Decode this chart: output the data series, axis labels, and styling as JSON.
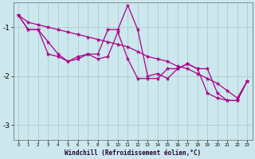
{
  "xlabel": "Windchill (Refroidissement éolien,°C)",
  "bg_color": "#cce8ee",
  "line_color": "#aa0088",
  "grid_color": "#aacccc",
  "ylim": [
    -3.3,
    -0.5
  ],
  "xlim": [
    -0.5,
    23.5
  ],
  "yticks": [
    -3,
    -2,
    -1
  ],
  "xticks": [
    0,
    1,
    2,
    3,
    4,
    5,
    6,
    7,
    8,
    9,
    10,
    11,
    12,
    13,
    14,
    15,
    16,
    17,
    18,
    19,
    20,
    21,
    22,
    23
  ],
  "s1": [
    -0.75,
    -1.05,
    -1.05,
    -1.55,
    -1.6,
    -1.7,
    -1.6,
    -1.55,
    -1.55,
    -1.05,
    -1.05,
    -0.55,
    -1.05,
    -2.0,
    -1.95,
    -2.05,
    -1.85,
    -1.75,
    -1.85,
    -1.85,
    -2.35,
    -2.5,
    -2.5,
    -2.1
  ],
  "s2": [
    -0.75,
    -1.05,
    -1.05,
    -1.3,
    -1.55,
    -1.7,
    -1.65,
    -1.55,
    -1.65,
    -1.6,
    -1.1,
    -1.65,
    -2.05,
    -2.05,
    -2.05,
    -1.85,
    -1.85,
    -1.75,
    -1.85,
    -2.35,
    -2.45,
    -2.5,
    -2.5,
    -2.1
  ],
  "s3": [
    -0.75,
    -0.9,
    -0.95,
    -1.0,
    -1.05,
    -1.1,
    -1.15,
    -1.2,
    -1.25,
    -1.3,
    -1.35,
    -1.4,
    -1.5,
    -1.6,
    -1.65,
    -1.7,
    -1.8,
    -1.85,
    -1.95,
    -2.05,
    -2.15,
    -2.3,
    -2.45,
    -2.1
  ],
  "markersize": 3.5,
  "linewidth": 0.9
}
